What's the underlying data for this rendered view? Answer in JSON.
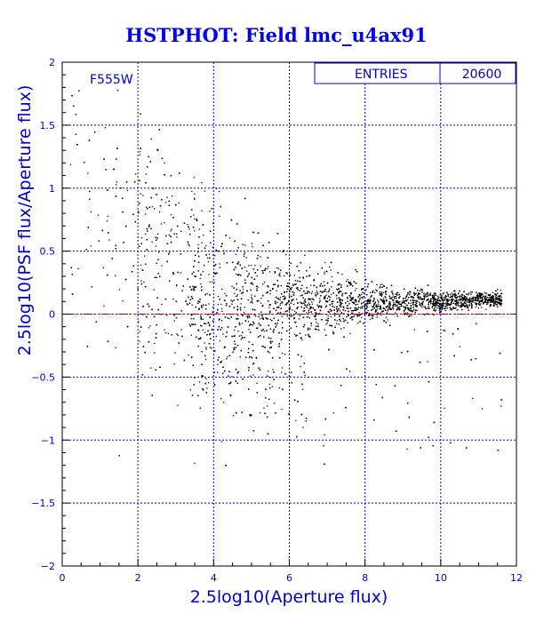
{
  "title": "HSTPHOT: Field lmc_u4ax91",
  "colors": {
    "axis": "#0000cc",
    "frame": "#000000",
    "points": "#000000",
    "reference_line": "#cc0000",
    "title": "#0000ee",
    "background": "#ffffff"
  },
  "stats_box": {
    "label": "ENTRIES",
    "value": "20600"
  },
  "chart_data": {
    "type": "scatter",
    "filter_label": "F555W",
    "xlabel": "2.5log10(Aperture flux)",
    "ylabel": "2.5log10(PSF flux/Aperture flux)",
    "xlim": [
      0,
      12
    ],
    "ylim": [
      -2,
      2
    ],
    "grid": true,
    "x_ticks": [
      "0",
      "2",
      "4",
      "6",
      "8",
      "10",
      "12"
    ],
    "y_ticks": [
      "-2",
      "-1.5",
      "-1",
      "-0.5",
      "0",
      "0.5",
      "1",
      "1.5",
      "2"
    ],
    "reference_line_y": 0,
    "entries": 20600,
    "distribution_trend": [
      {
        "x": 1.0,
        "y_center": 0.9,
        "y_spread": 0.45
      },
      {
        "x": 2.0,
        "y_center": 0.55,
        "y_spread": 0.55
      },
      {
        "x": 3.0,
        "y_center": 0.35,
        "y_spread": 0.45
      },
      {
        "x": 4.0,
        "y_center": 0.2,
        "y_spread": 0.35
      },
      {
        "x": 5.0,
        "y_center": 0.15,
        "y_spread": 0.25
      },
      {
        "x": 6.0,
        "y_center": 0.12,
        "y_spread": 0.18
      },
      {
        "x": 7.0,
        "y_center": 0.1,
        "y_spread": 0.12
      },
      {
        "x": 8.0,
        "y_center": 0.1,
        "y_spread": 0.08
      },
      {
        "x": 9.0,
        "y_center": 0.1,
        "y_spread": 0.05
      },
      {
        "x": 10.0,
        "y_center": 0.1,
        "y_spread": 0.04
      },
      {
        "x": 11.0,
        "y_center": 0.12,
        "y_spread": 0.03
      },
      {
        "x": 11.6,
        "y_center": 0.12,
        "y_spread": 0.03
      }
    ],
    "secondary_clump": {
      "x_range": [
        3.5,
        6.5
      ],
      "y_center": -0.4,
      "y_spread": 0.25
    }
  }
}
